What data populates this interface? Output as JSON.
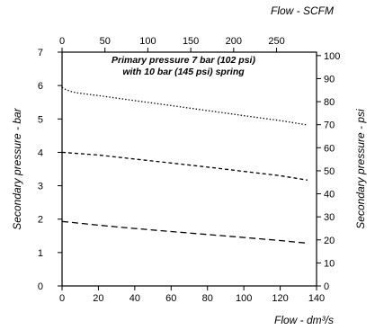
{
  "chart_data": {
    "type": "line",
    "x_bottom": {
      "label": "Flow - dm³/s",
      "range": [
        0,
        140
      ],
      "ticks": [
        0,
        20,
        40,
        60,
        80,
        100,
        120,
        140
      ],
      "tick_labels": [
        "0",
        "20",
        "40",
        "60",
        "80",
        "100",
        "120",
        "140"
      ]
    },
    "x_top": {
      "label": "Flow - SCFM",
      "range": [
        0,
        296.6
      ],
      "ticks": [
        0,
        50,
        100,
        150,
        200,
        250
      ],
      "tick_labels": [
        "0",
        "50",
        "100",
        "150",
        "200",
        "250"
      ]
    },
    "y_left": {
      "label": "Secondary pressure - bar",
      "range": [
        0,
        7
      ],
      "ticks": [
        0,
        1,
        2,
        3,
        4,
        5,
        6,
        7
      ],
      "tick_labels": [
        "0",
        "1",
        "2",
        "3",
        "4",
        "5",
        "6",
        "7"
      ]
    },
    "y_right": {
      "label": "Secondary pressure - psi",
      "range": [
        0,
        101.5
      ],
      "ticks": [
        0,
        10,
        20,
        30,
        40,
        50,
        60,
        70,
        80,
        90,
        100
      ],
      "tick_labels": [
        "0",
        "10",
        "20",
        "30",
        "40",
        "50",
        "60",
        "70",
        "80",
        "90",
        "100"
      ]
    },
    "annotation": [
      "Primary pressure 7 bar (102 psi)",
      "with 10 bar (145 psi) spring"
    ],
    "grid": false,
    "series": [
      {
        "style": "dotted",
        "x": [
          0,
          2,
          5,
          8,
          10,
          20,
          40,
          60,
          80,
          100,
          120,
          135
        ],
        "y": [
          5.95,
          5.88,
          5.82,
          5.78,
          5.77,
          5.7,
          5.55,
          5.4,
          5.25,
          5.1,
          4.95,
          4.82
        ]
      },
      {
        "style": "dashed",
        "x": [
          0,
          20,
          40,
          60,
          80,
          100,
          120,
          135
        ],
        "y": [
          4.0,
          3.92,
          3.8,
          3.68,
          3.56,
          3.43,
          3.3,
          3.17
        ]
      },
      {
        "style": "long-dashed",
        "x": [
          0,
          20,
          40,
          60,
          80,
          100,
          120,
          135
        ],
        "y": [
          1.93,
          1.82,
          1.72,
          1.63,
          1.54,
          1.45,
          1.36,
          1.28
        ]
      }
    ]
  }
}
